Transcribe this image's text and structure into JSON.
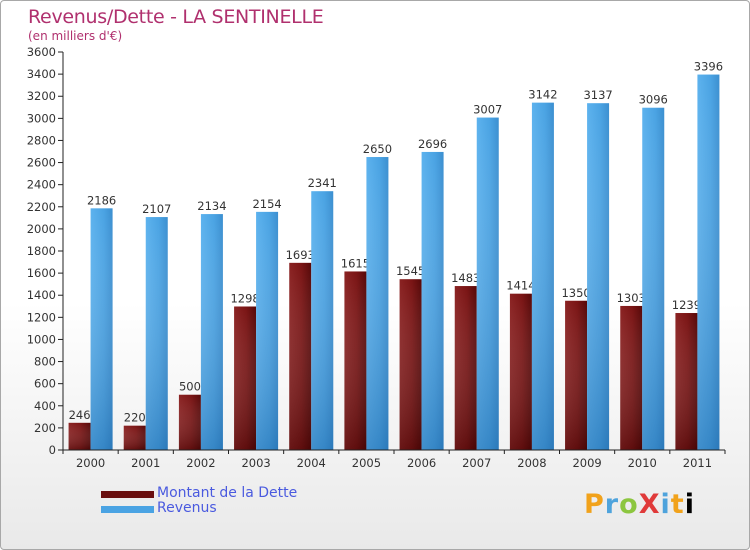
{
  "title": "Revenus/Dette - LA SENTINELLE",
  "subtitle": "(en milliers d'€)",
  "logo": "ProXiti",
  "chart_data": {
    "type": "bar",
    "categories": [
      "2000",
      "2001",
      "2002",
      "2003",
      "2004",
      "2005",
      "2006",
      "2007",
      "2008",
      "2009",
      "2010",
      "2011"
    ],
    "series": [
      {
        "name": "Montant de la Dette",
        "values": [
          246,
          220,
          500,
          1298,
          1693,
          1615,
          1545,
          1483,
          1414,
          1350,
          1303,
          1239
        ],
        "labels": [
          "246",
          "220",
          "500",
          "1298",
          "1693",
          "1615",
          "1545",
          "1483",
          "1414",
          "1350",
          "1303",
          "1239"
        ],
        "color": "#7b1414"
      },
      {
        "name": "Revenus",
        "values": [
          2186,
          2107,
          2134,
          2154,
          2341,
          2650,
          2696,
          3007,
          3142,
          3137,
          3096,
          3396
        ],
        "labels": [
          "2186",
          "2107",
          "2134",
          "2154",
          "2341",
          "2650",
          "2696",
          "3007",
          "3142",
          "3137",
          "3096",
          "3396"
        ],
        "color": "#4aa3e3"
      }
    ],
    "ylim": [
      0,
      3600
    ],
    "yticks": [
      "0",
      "200",
      "400",
      "600",
      "800",
      "1000",
      "1200",
      "1400",
      "1600",
      "1800",
      "2000",
      "2200",
      "2400",
      "2600",
      "2800",
      "3000",
      "3200",
      "3400",
      "3600"
    ],
    "grid": false,
    "legend": "bottom-left"
  }
}
